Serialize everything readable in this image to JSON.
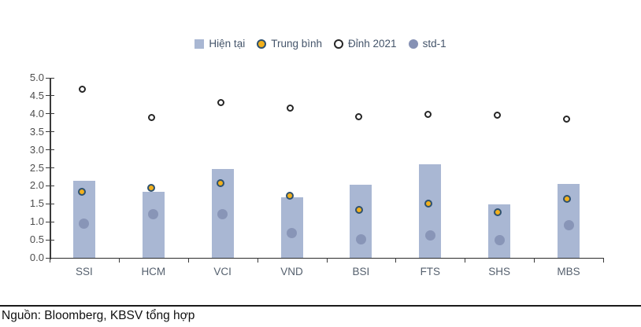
{
  "legend": {
    "items": [
      {
        "label": "Hiện tại",
        "marker": "square",
        "fill": "#a9b7d3",
        "border": "none"
      },
      {
        "label": "Trung bình",
        "marker": "circle",
        "fill": "#f2b01c",
        "border": "#2e516f"
      },
      {
        "label": "Đỉnh 2021",
        "marker": "circle",
        "fill": "#ffffff",
        "border": "#262626"
      },
      {
        "label": "std-1",
        "marker": "circle",
        "fill": "#8691b4",
        "border": "none"
      }
    ]
  },
  "chart_data": {
    "type": "bar",
    "title": "",
    "xlabel": "",
    "ylabel": "",
    "categories": [
      "SSI",
      "HCM",
      "VCI",
      "VND",
      "BSI",
      "FTS",
      "SHS",
      "MBS"
    ],
    "series": [
      {
        "name": "Hiện tại",
        "type": "bar",
        "values": [
          2.15,
          1.83,
          2.47,
          1.68,
          2.03,
          2.6,
          1.48,
          2.05
        ]
      },
      {
        "name": "Trung bình",
        "type": "scatter",
        "values": [
          1.77,
          1.88,
          2.03,
          1.66,
          1.27,
          1.46,
          1.22,
          1.59
        ]
      },
      {
        "name": "Đỉnh 2021",
        "type": "scatter",
        "values": [
          4.62,
          3.84,
          4.26,
          4.1,
          3.86,
          3.93,
          3.91,
          3.8
        ]
      },
      {
        "name": "std-1",
        "type": "scatter",
        "values": [
          0.95,
          1.22,
          1.22,
          0.68,
          0.52,
          0.63,
          0.5,
          0.9
        ]
      }
    ],
    "ylim": [
      0.0,
      5.0
    ],
    "ytick_step": 0.5,
    "ytick_labels": [
      "0.0",
      "0.5",
      "1.0",
      "1.5",
      "2.0",
      "2.5",
      "3.0",
      "3.5",
      "4.0",
      "4.5",
      "5.0"
    ],
    "grid": false,
    "legend_position": "top-center"
  },
  "colors": {
    "bar": "#a9b7d3",
    "avg_fill": "#f2b01c",
    "avg_ring": "#2e516f",
    "peak_fill": "#ffffff",
    "peak_ring": "#262626",
    "std1_fill": "#8691b4",
    "axis": "#3a3a3a",
    "tick_text": "#4d4d4d",
    "category_text": "#55606e",
    "legend_text": "#44546a"
  },
  "footer": {
    "source": "Nguồn: Bloomberg, KBSV tổng hợp"
  }
}
